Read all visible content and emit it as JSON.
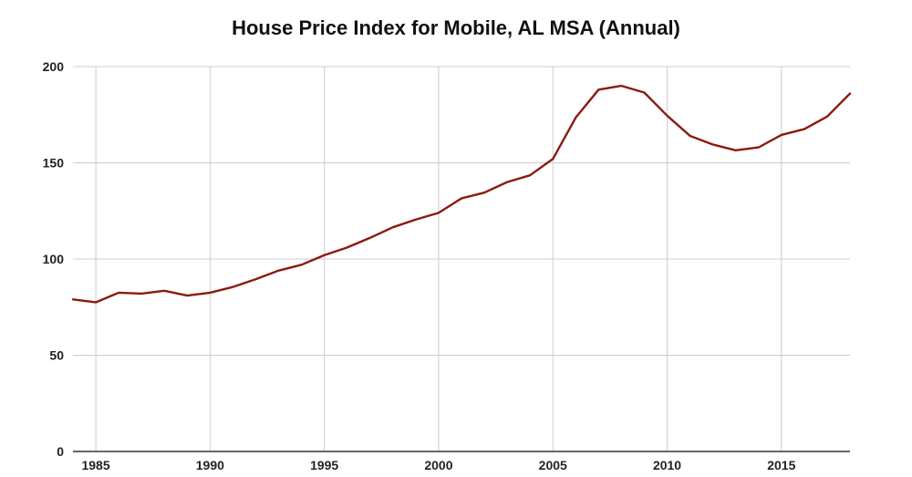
{
  "chart_data": {
    "type": "line",
    "title": "House Price Index for Mobile, AL MSA (Annual)",
    "xlabel": "",
    "ylabel": "",
    "xlim": [
      1984,
      2018
    ],
    "ylim": [
      0,
      200
    ],
    "x_ticks": [
      1985,
      1990,
      1995,
      2000,
      2005,
      2010,
      2015
    ],
    "y_ticks": [
      0,
      50,
      100,
      150,
      200
    ],
    "grid": true,
    "legend": "none",
    "series": [
      {
        "color": "#8b1a10",
        "x": [
          1984,
          1985,
          1986,
          1987,
          1988,
          1989,
          1990,
          1991,
          1992,
          1993,
          1994,
          1995,
          1996,
          1997,
          1998,
          1999,
          2000,
          2001,
          2002,
          2003,
          2004,
          2005,
          2006,
          2007,
          2008,
          2009,
          2010,
          2011,
          2012,
          2013,
          2014,
          2015,
          2016,
          2017,
          2018
        ],
        "values": [
          79,
          77.5,
          82.5,
          82,
          83.5,
          81,
          82.5,
          85.5,
          89.5,
          94,
          97,
          102,
          106,
          111,
          116.5,
          120.5,
          124,
          131.5,
          134.5,
          140,
          143.5,
          152,
          173.5,
          188,
          190,
          186.5,
          174.5,
          164,
          159.5,
          156.5,
          158,
          164.5,
          167.5,
          174,
          186
        ]
      }
    ]
  }
}
